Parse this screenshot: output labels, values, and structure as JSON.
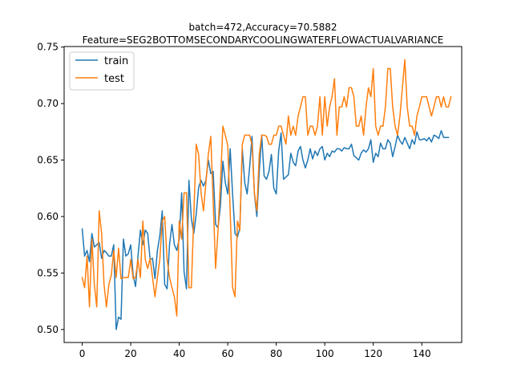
{
  "chart_data": {
    "type": "line",
    "title_line1": "batch=472,Accuracy=70.5882",
    "title_line2": "Feature=SEG2BOTTOMSECONDARYCOOLINGWATERFLOWACTUALVARIANCE",
    "xlabel": "",
    "ylabel": "",
    "xlim": [
      -7.45,
      156.45
    ],
    "ylim": [
      0.4885,
      0.7505
    ],
    "xticks": [
      0,
      20,
      40,
      60,
      80,
      100,
      120,
      140
    ],
    "yticks": [
      0.5,
      0.55,
      0.6,
      0.65,
      0.7,
      0.75
    ],
    "ytick_labels": [
      "0.50",
      "0.55",
      "0.60",
      "0.65",
      "0.70",
      "0.75"
    ],
    "grid": false,
    "legend_position": "upper-left",
    "colors": {
      "train": "#1f77b4",
      "test": "#ff7f0e"
    },
    "series": [
      {
        "name": "train",
        "values": [
          0.589,
          0.565,
          0.57,
          0.56,
          0.585,
          0.573,
          0.575,
          0.577,
          0.563,
          0.57,
          0.568,
          0.565,
          0.565,
          0.575,
          0.5,
          0.511,
          0.509,
          0.58,
          0.565,
          0.567,
          0.575,
          0.548,
          0.538,
          0.565,
          0.588,
          0.575,
          0.588,
          0.585,
          0.562,
          0.563,
          0.545,
          0.57,
          0.583,
          0.605,
          0.54,
          0.536,
          0.575,
          0.593,
          0.575,
          0.57,
          0.58,
          0.621,
          0.551,
          0.536,
          0.632,
          0.598,
          0.585,
          0.602,
          0.626,
          0.632,
          0.627,
          0.632,
          0.65,
          0.638,
          0.64,
          0.593,
          0.59,
          0.61,
          0.649,
          0.63,
          0.62,
          0.66,
          0.62,
          0.585,
          0.582,
          0.59,
          0.66,
          0.63,
          0.62,
          0.643,
          0.671,
          0.62,
          0.6,
          0.64,
          0.672,
          0.636,
          0.633,
          0.64,
          0.655,
          0.625,
          0.62,
          0.658,
          0.674,
          0.633,
          0.635,
          0.637,
          0.656,
          0.648,
          0.645,
          0.658,
          0.662,
          0.65,
          0.643,
          0.65,
          0.66,
          0.651,
          0.658,
          0.654,
          0.66,
          0.662,
          0.65,
          0.656,
          0.653,
          0.658,
          0.657,
          0.66,
          0.66,
          0.658,
          0.661,
          0.66,
          0.66,
          0.664,
          0.654,
          0.652,
          0.65,
          0.656,
          0.659,
          0.657,
          0.66,
          0.668,
          0.648,
          0.656,
          0.653,
          0.665,
          0.66,
          0.66,
          0.668,
          0.665,
          0.653,
          0.662,
          0.672,
          0.667,
          0.664,
          0.67,
          0.665,
          0.66,
          0.668,
          0.664,
          0.675,
          0.668,
          0.668,
          0.669,
          0.667,
          0.67,
          0.666,
          0.672,
          0.671,
          0.669,
          0.676,
          0.67,
          0.67,
          0.67
        ]
      },
      {
        "name": "test",
        "values": [
          0.546,
          0.537,
          0.565,
          0.52,
          0.58,
          0.54,
          0.52,
          0.605,
          0.585,
          0.54,
          0.52,
          0.54,
          0.548,
          0.57,
          0.546,
          0.572,
          0.545,
          0.546,
          0.546,
          0.546,
          0.562,
          0.545,
          0.546,
          0.562,
          0.546,
          0.596,
          0.562,
          0.554,
          0.563,
          0.546,
          0.529,
          0.546,
          0.562,
          0.596,
          0.6,
          0.562,
          0.546,
          0.537,
          0.529,
          0.512,
          0.596,
          0.58,
          0.621,
          0.621,
          0.537,
          0.537,
          0.6,
          0.664,
          0.655,
          0.621,
          0.605,
          0.63,
          0.655,
          0.671,
          0.613,
          0.554,
          0.588,
          0.63,
          0.68,
          0.672,
          0.663,
          0.605,
          0.537,
          0.529,
          0.596,
          0.588,
          0.664,
          0.672,
          0.672,
          0.672,
          0.664,
          0.621,
          0.605,
          0.655,
          0.672,
          0.672,
          0.671,
          0.664,
          0.664,
          0.672,
          0.672,
          0.68,
          0.68,
          0.672,
          0.664,
          0.689,
          0.672,
          0.68,
          0.672,
          0.689,
          0.697,
          0.706,
          0.706,
          0.672,
          0.68,
          0.68,
          0.672,
          0.68,
          0.706,
          0.672,
          0.706,
          0.68,
          0.697,
          0.706,
          0.722,
          0.672,
          0.697,
          0.697,
          0.706,
          0.697,
          0.714,
          0.714,
          0.706,
          0.68,
          0.68,
          0.689,
          0.672,
          0.697,
          0.714,
          0.706,
          0.731,
          0.68,
          0.672,
          0.68,
          0.68,
          0.697,
          0.731,
          0.731,
          0.697,
          0.68,
          0.672,
          0.689,
          0.714,
          0.739,
          0.697,
          0.68,
          0.68,
          0.672,
          0.689,
          0.697,
          0.706,
          0.706,
          0.706,
          0.697,
          0.689,
          0.697,
          0.706,
          0.706,
          0.697,
          0.706,
          0.697,
          0.697,
          0.706
        ]
      }
    ]
  }
}
